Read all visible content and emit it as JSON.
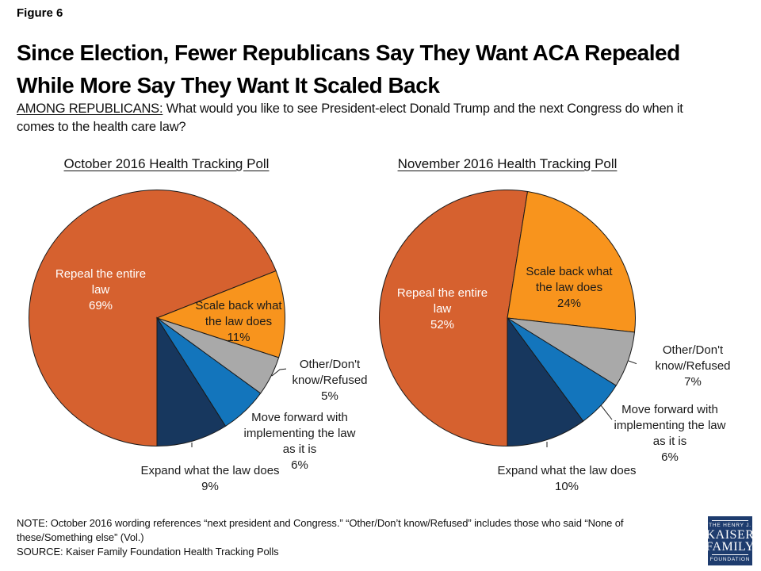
{
  "figure_label": "Figure 6",
  "title_lines": [
    "Since Election, Fewer Republicans Say They Want ACA Repealed",
    "While More Say They Want It Scaled Back"
  ],
  "subtitle_prefix": "AMONG REPUBLICANS:",
  "subtitle_text": "What would you like to see President-elect Donald Trump and the next Congress do when it comes to the health care law?",
  "chart_data": [
    {
      "type": "pie",
      "title": "October 2016 Health Tracking Poll",
      "start_angle_deg": 180,
      "direction": "clockwise",
      "slices": [
        {
          "key": "repeal",
          "label": "Repeal the entire law",
          "value": 69,
          "pct": "69%",
          "color": "#D6612F"
        },
        {
          "key": "scale-back",
          "label": "Scale back what the law does",
          "value": 11,
          "pct": "11%",
          "color": "#F8941D"
        },
        {
          "key": "other",
          "label": "Other/Don't know/Refused",
          "value": 5,
          "pct": "5%",
          "color": "#A9A9A9"
        },
        {
          "key": "move-forward",
          "label": "Move forward with implementing the law as it is",
          "value": 6,
          "pct": "6%",
          "color": "#1375BC"
        },
        {
          "key": "expand",
          "label": "Expand what the law does",
          "value": 9,
          "pct": "9%",
          "color": "#17375E"
        }
      ]
    },
    {
      "type": "pie",
      "title": "November 2016 Health Tracking Poll",
      "start_angle_deg": 180,
      "direction": "clockwise",
      "slices": [
        {
          "key": "repeal",
          "label": "Repeal the entire law",
          "value": 52,
          "pct": "52%",
          "color": "#D6612F"
        },
        {
          "key": "scale-back",
          "label": "Scale back what the law does",
          "value": 24,
          "pct": "24%",
          "color": "#F8941D"
        },
        {
          "key": "other",
          "label": "Other/Don't know/Refused",
          "value": 7,
          "pct": "7%",
          "color": "#A9A9A9"
        },
        {
          "key": "move-forward",
          "label": "Move forward with implementing the law as it is",
          "value": 6,
          "pct": "6%",
          "color": "#1375BC"
        },
        {
          "key": "expand",
          "label": "Expand what the law does",
          "value": 10,
          "pct": "10%",
          "color": "#17375E"
        }
      ]
    }
  ],
  "note_line": "NOTE: October 2016 wording references “next president and Congress.” “Other/Don’t know/Refused” includes those who said “None of these/Something else” (Vol.)",
  "source_line": "SOURCE: Kaiser Family Foundation Health Tracking Polls",
  "logo": {
    "line1": "THE HENRY J.",
    "line2": "KAISER",
    "line3": "FAMILY",
    "line4": "FOUNDATION"
  }
}
